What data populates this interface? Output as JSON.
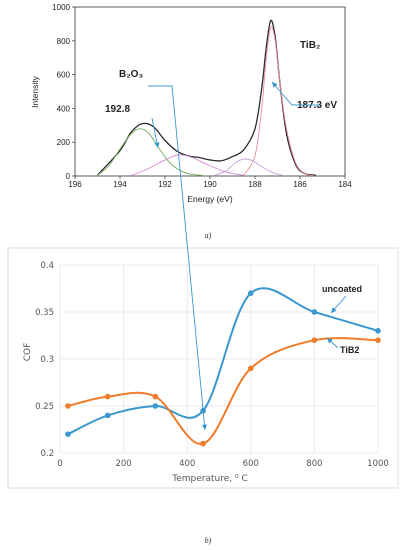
{
  "chart_data": [
    {
      "type": "line",
      "title": "",
      "xlabel": "Energy (eV)",
      "ylabel": "Intensity",
      "xlim": [
        196,
        184
      ],
      "ylim": [
        0,
        1000
      ],
      "x_ticks": [
        "196",
        "194",
        "192",
        "190",
        "188",
        "186",
        "184"
      ],
      "y_ticks": [
        "0",
        "200",
        "400",
        "600",
        "800",
        "1000"
      ],
      "series": [
        {
          "color": "#2b2b2b",
          "x": [
            195.0,
            194.0,
            193.5,
            193.0,
            192.5,
            192.0,
            191.5,
            191.0,
            190.5,
            190.0,
            189.5,
            189.0,
            188.5,
            188.0,
            187.7,
            187.5,
            187.3,
            187.1,
            186.9,
            186.6,
            186.2,
            185.8,
            185.3
          ],
          "values": [
            5,
            150,
            260,
            310,
            290,
            210,
            150,
            120,
            110,
            95,
            90,
            115,
            155,
            280,
            520,
            760,
            920,
            820,
            560,
            250,
            70,
            15,
            5
          ]
        },
        {
          "color": "#6fae5a",
          "x": [
            195.0,
            194.5,
            194.0,
            193.5,
            193.1,
            192.7,
            192.3,
            191.8,
            191.3,
            190.8,
            190.3
          ],
          "values": [
            5,
            60,
            160,
            250,
            280,
            250,
            170,
            80,
            30,
            10,
            3
          ]
        },
        {
          "color": "#d88ad6",
          "x": [
            193.5,
            192.8,
            192.0,
            191.4,
            190.8,
            190.0,
            189.2,
            188.5
          ],
          "values": [
            3,
            40,
            95,
            125,
            110,
            60,
            20,
            5
          ]
        },
        {
          "color": "#e88f98",
          "x": [
            188.5,
            188.0,
            187.7,
            187.5,
            187.3,
            187.1,
            186.9,
            186.6,
            186.2,
            185.8,
            185.4
          ],
          "values": [
            5,
            120,
            400,
            700,
            880,
            800,
            560,
            280,
            80,
            15,
            3
          ]
        },
        {
          "color": "#c9a0df",
          "x": [
            189.8,
            189.3,
            188.9,
            188.5,
            188.1,
            187.7,
            187.2,
            186.8
          ],
          "values": [
            3,
            30,
            75,
            100,
            90,
            55,
            20,
            5
          ]
        }
      ],
      "annotations": [
        {
          "text": "TiB₂",
          "x": 187.3
        },
        {
          "text": "187.3 eV",
          "x": 187.3
        },
        {
          "text": "B₂O₃",
          "x": 192.8
        },
        {
          "text": "192.8",
          "x": 192.8
        }
      ]
    },
    {
      "type": "line",
      "title": "",
      "xlabel": "Temperature, ⁰ C",
      "ylabel": "COF",
      "xlim": [
        0,
        1000
      ],
      "ylim": [
        0.2,
        0.4
      ],
      "x_ticks": [
        "0",
        "200",
        "400",
        "600",
        "800",
        "1000"
      ],
      "y_ticks": [
        "0.2",
        "0.25",
        "0.3",
        "0.35",
        "0.4"
      ],
      "grid": true,
      "series": [
        {
          "name": "uncoated",
          "color": "#3a97cf",
          "x": [
            25,
            150,
            300,
            450,
            600,
            800,
            1000
          ],
          "values": [
            0.22,
            0.24,
            0.25,
            0.245,
            0.37,
            0.35,
            0.33
          ]
        },
        {
          "name": "TiB2",
          "color": "#ef7d2d",
          "x": [
            25,
            150,
            300,
            450,
            600,
            800,
            1000
          ],
          "values": [
            0.25,
            0.26,
            0.26,
            0.21,
            0.29,
            0.32,
            0.32
          ]
        }
      ]
    }
  ],
  "captions": {
    "a": "a)",
    "b": "b)"
  }
}
